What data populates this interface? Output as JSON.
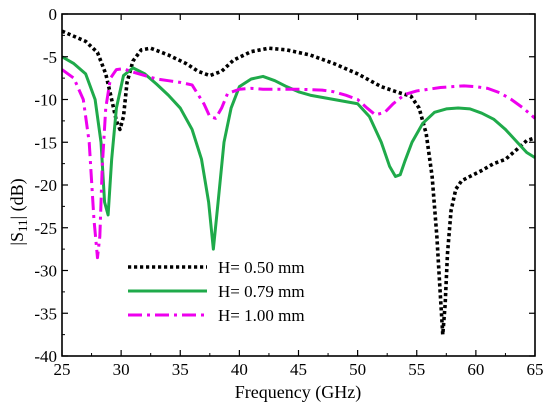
{
  "chart_data": {
    "type": "line",
    "xlabel": "Frequency (GHz)",
    "ylabel_main": "|S",
    "ylabel_sub": "11",
    "ylabel_tail": "| (dB)",
    "xlim": [
      25,
      65
    ],
    "ylim": [
      -40,
      0
    ],
    "xticks": [
      25,
      30,
      35,
      40,
      45,
      50,
      55,
      60,
      65
    ],
    "yticks": [
      0,
      -5,
      -10,
      -15,
      -20,
      -25,
      -30,
      -35,
      -40
    ],
    "grid": false,
    "legend_position": "bottom-left",
    "series": [
      {
        "name": "H= 0.50 mm",
        "color": "#000000",
        "style": "dotted",
        "x": [
          25,
          26,
          27,
          28,
          28.7,
          29.2,
          29.6,
          29.9,
          30.2,
          30.5,
          31,
          31.7,
          32.5,
          34,
          35.5,
          36.5,
          37.5,
          38.5,
          39.5,
          41,
          42.5,
          44,
          46,
          48,
          50,
          52,
          53.5,
          54.5,
          55.2,
          55.8,
          56.3,
          56.7,
          57,
          57.2,
          57.4,
          57.6,
          57.9,
          58.3,
          58.8,
          59.5,
          60.5,
          61.5,
          62.5,
          63.5,
          64.3,
          65
        ],
        "y": [
          -2,
          -2.6,
          -3.2,
          -4.5,
          -7,
          -10,
          -12.5,
          -13.5,
          -12,
          -8,
          -5.5,
          -4.2,
          -4,
          -4.8,
          -5.8,
          -6.7,
          -7.2,
          -6.7,
          -5.4,
          -4.4,
          -4,
          -4.2,
          -4.8,
          -5.8,
          -7,
          -8.5,
          -9.2,
          -9.6,
          -11,
          -14,
          -19,
          -26,
          -33,
          -37.5,
          -34,
          -28,
          -23,
          -20.5,
          -19.5,
          -19,
          -18.3,
          -17.5,
          -17,
          -15.8,
          -14.8,
          -14.5
        ]
      },
      {
        "name": "H= 0.79 mm",
        "color": "#1faa4a",
        "style": "solid",
        "x": [
          25,
          26,
          27,
          27.8,
          28.3,
          28.6,
          28.9,
          29.2,
          29.6,
          30.2,
          31,
          32,
          33,
          34,
          35,
          36,
          36.8,
          37.4,
          37.8,
          38.2,
          38.7,
          39.3,
          40,
          41,
          42,
          43,
          44,
          45,
          46,
          48,
          50,
          51,
          52,
          52.7,
          53.2,
          53.6,
          54,
          54.6,
          55.5,
          56.5,
          57.5,
          58.5,
          59.5,
          60.5,
          61.5,
          62.5,
          63.5,
          64.3,
          65
        ],
        "y": [
          -5,
          -5.8,
          -7,
          -10,
          -15,
          -22,
          -23.5,
          -17,
          -11,
          -7.2,
          -6.3,
          -7,
          -8.2,
          -9.5,
          -11,
          -13.5,
          -17,
          -22,
          -27.5,
          -22,
          -15,
          -11,
          -8.5,
          -7.6,
          -7.3,
          -7.8,
          -8.5,
          -9.1,
          -9.5,
          -10,
          -10.5,
          -12,
          -15,
          -17.8,
          -19,
          -18.8,
          -17.2,
          -15,
          -12.8,
          -11.5,
          -11.1,
          -11,
          -11.1,
          -11.6,
          -12.3,
          -13.5,
          -15,
          -16.2,
          -16.8
        ]
      },
      {
        "name": "H= 1.00 mm",
        "color": "#ee00ee",
        "style": "dashdot",
        "x": [
          25,
          26,
          26.8,
          27.3,
          27.7,
          28,
          28.2,
          28.4,
          28.7,
          29.1,
          29.6,
          30.2,
          31,
          32,
          33,
          34,
          35,
          36,
          37,
          37.5,
          38,
          38.5,
          39,
          40,
          41,
          42,
          43,
          45,
          47,
          48,
          49,
          50,
          50.8,
          51.5,
          52.3,
          53,
          54,
          55,
          56,
          57,
          58,
          59,
          60,
          61,
          62,
          63,
          64,
          65
        ],
        "y": [
          -6.5,
          -7.5,
          -10,
          -15,
          -24,
          -28.5,
          -26,
          -18,
          -11,
          -7.5,
          -6.5,
          -6.4,
          -6.8,
          -7.2,
          -7.6,
          -7.8,
          -8,
          -8.3,
          -10.5,
          -12,
          -12.2,
          -11,
          -9.3,
          -8.8,
          -8.7,
          -8.8,
          -8.8,
          -8.8,
          -8.9,
          -9.1,
          -9.5,
          -10,
          -11,
          -11.8,
          -11.5,
          -10.5,
          -9.4,
          -9,
          -8.8,
          -8.6,
          -8.5,
          -8.4,
          -8.5,
          -8.7,
          -9.2,
          -10,
          -11,
          -12.2
        ]
      }
    ]
  }
}
